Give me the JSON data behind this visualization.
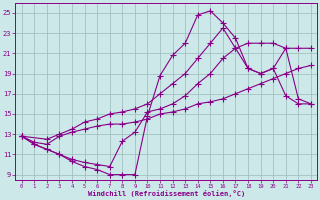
{
  "xlabel": "Windchill (Refroidissement éolien,°C)",
  "bg_color": "#cce8e8",
  "grid_color": "#99bbbb",
  "line_color": "#880088",
  "marker": "+",
  "markersize": 4,
  "xlim": [
    -0.5,
    23.5
  ],
  "ylim": [
    8.5,
    26
  ],
  "yticks": [
    9,
    11,
    13,
    15,
    17,
    19,
    21,
    23,
    25
  ],
  "xticks": [
    0,
    1,
    2,
    3,
    4,
    5,
    6,
    7,
    8,
    9,
    10,
    11,
    12,
    13,
    14,
    15,
    16,
    17,
    18,
    19,
    20,
    21,
    22,
    23
  ],
  "curves": [
    {
      "x": [
        0,
        1,
        2,
        3,
        4,
        5,
        6,
        7,
        8,
        9,
        10,
        11,
        12,
        13,
        14,
        15,
        16,
        17,
        18,
        19,
        20,
        21,
        22,
        23
      ],
      "y": [
        12.8,
        12.0,
        11.5,
        11.0,
        10.3,
        9.8,
        9.5,
        9.0,
        9.0,
        9.0,
        14.8,
        18.8,
        20.8,
        22.0,
        24.8,
        25.2,
        24.0,
        22.5,
        19.5,
        19.0,
        19.5,
        16.8,
        16.0,
        16.0
      ]
    },
    {
      "x": [
        0,
        1,
        2,
        3,
        4,
        5,
        6,
        7,
        8,
        9,
        10,
        11,
        12,
        13,
        14,
        15,
        16,
        17,
        18,
        19,
        20,
        21,
        22,
        23
      ],
      "y": [
        12.8,
        12.2,
        12.0,
        12.8,
        13.2,
        13.5,
        13.8,
        14.0,
        14.0,
        14.2,
        14.5,
        15.0,
        15.2,
        15.5,
        16.0,
        16.2,
        16.5,
        17.0,
        17.5,
        18.0,
        18.5,
        19.0,
        19.5,
        19.8
      ]
    },
    {
      "x": [
        0,
        2,
        3,
        4,
        5,
        6,
        7,
        8,
        9,
        10,
        11,
        12,
        13,
        14,
        15,
        16,
        17,
        18,
        19,
        20,
        21,
        22,
        23
      ],
      "y": [
        12.8,
        12.5,
        13.0,
        13.5,
        14.2,
        14.5,
        15.0,
        15.2,
        15.5,
        16.0,
        17.0,
        18.0,
        19.0,
        20.5,
        22.0,
        23.5,
        21.5,
        19.5,
        19.0,
        19.5,
        21.5,
        16.5,
        16.0
      ]
    },
    {
      "x": [
        0,
        1,
        2,
        3,
        4,
        5,
        6,
        7,
        8,
        9,
        10,
        11,
        12,
        13,
        14,
        15,
        16,
        17,
        18,
        19,
        20,
        21,
        22,
        23
      ],
      "y": [
        12.8,
        12.0,
        11.5,
        11.0,
        10.5,
        10.2,
        10.0,
        9.8,
        12.3,
        13.2,
        15.2,
        15.5,
        16.0,
        16.8,
        18.0,
        19.0,
        20.5,
        21.5,
        22.0,
        22.0,
        22.0,
        21.5,
        21.5,
        21.5
      ]
    }
  ]
}
